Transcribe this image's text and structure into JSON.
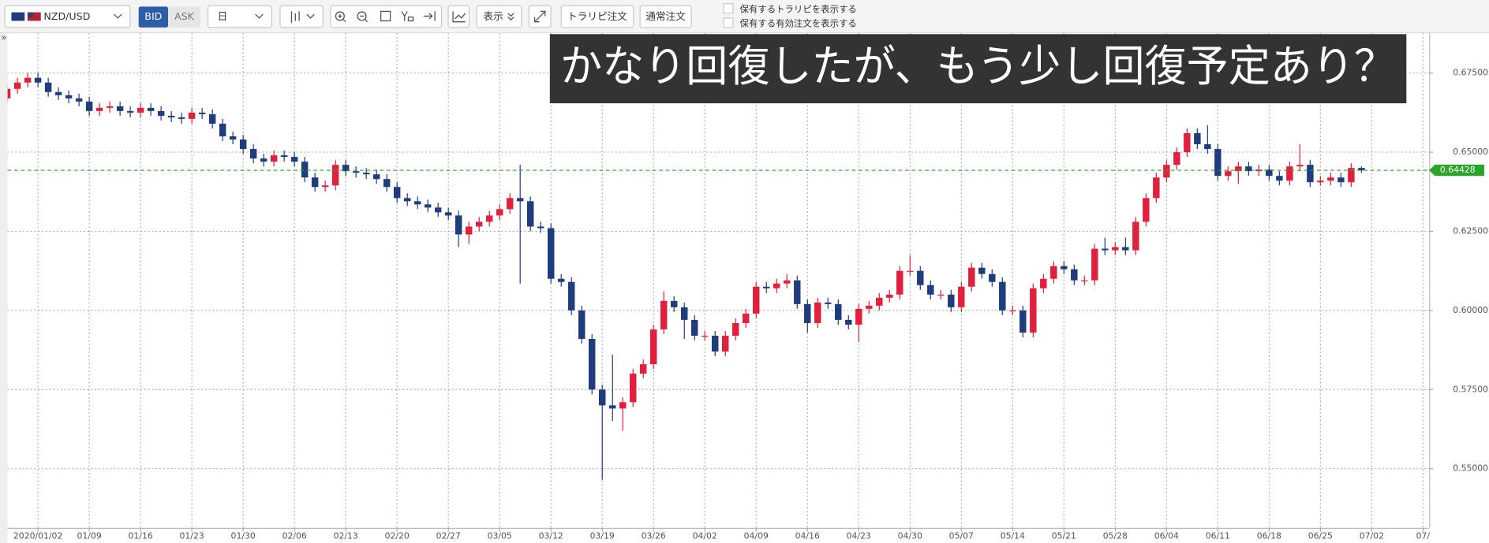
{
  "toolbar": {
    "symbol": "NZD/USD",
    "bid": "BID",
    "ask": "ASK",
    "timeframe": "日",
    "display": "表示",
    "trarepi_order": "トラリピ注文",
    "normal_order": "通常注文",
    "checkboxes": [
      "保有するトラリピを表示する",
      "保有する有効注文を表示する"
    ],
    "sidebar_toggle": "»"
  },
  "chart_data": {
    "type": "candlestick",
    "annotation": "かなり回復したが、もう少し回復予定あり？",
    "up_color": "#e0203c",
    "down_color": "#1f3c7c",
    "current_price_color": "#2aa52a",
    "grid": true,
    "xlim": [
      0.04,
      138.6
    ],
    "ylim": [
      0.5313,
      0.6876
    ],
    "yticks": [
      {
        "value": 0.55,
        "label": "0.55000"
      },
      {
        "value": 0.575,
        "label": "0.57500"
      },
      {
        "value": 0.6,
        "label": "0.60000"
      },
      {
        "value": 0.625,
        "label": "0.62500"
      },
      {
        "value": 0.65,
        "label": "0.65000"
      },
      {
        "value": 0.675,
        "label": "0.67500"
      }
    ],
    "xticks": [
      {
        "value": 3,
        "label": "2020/01/02"
      },
      {
        "value": 8,
        "label": "01/09"
      },
      {
        "value": 13,
        "label": "01/16"
      },
      {
        "value": 18,
        "label": "01/23"
      },
      {
        "value": 23,
        "label": "01/30"
      },
      {
        "value": 28,
        "label": "02/06"
      },
      {
        "value": 33,
        "label": "02/13"
      },
      {
        "value": 38,
        "label": "02/20"
      },
      {
        "value": 43,
        "label": "02/27"
      },
      {
        "value": 48,
        "label": "03/05"
      },
      {
        "value": 53,
        "label": "03/12"
      },
      {
        "value": 58,
        "label": "03/19"
      },
      {
        "value": 63,
        "label": "03/26"
      },
      {
        "value": 68,
        "label": "04/02"
      },
      {
        "value": 73,
        "label": "04/09"
      },
      {
        "value": 78,
        "label": "04/16"
      },
      {
        "value": 83,
        "label": "04/23"
      },
      {
        "value": 88,
        "label": "04/30"
      },
      {
        "value": 93,
        "label": "05/07"
      },
      {
        "value": 98,
        "label": "05/14"
      },
      {
        "value": 103,
        "label": "05/21"
      },
      {
        "value": 108,
        "label": "05/28"
      },
      {
        "value": 113,
        "label": "06/04"
      },
      {
        "value": 118,
        "label": "06/11"
      },
      {
        "value": 123,
        "label": "06/18"
      },
      {
        "value": 128,
        "label": "06/25"
      },
      {
        "value": 133,
        "label": "07/02"
      },
      {
        "value": 138,
        "label": "07/"
      }
    ],
    "current_price": 0.64428,
    "open": [
      0.667,
      0.67,
      0.672,
      0.6735,
      0.672,
      0.669,
      0.668,
      0.667,
      0.666,
      0.663,
      0.664,
      0.6645,
      0.663,
      0.6625,
      0.664,
      0.663,
      0.6615,
      0.661,
      0.6605,
      0.6625,
      0.662,
      0.659,
      0.655,
      0.654,
      0.651,
      0.648,
      0.647,
      0.649,
      0.6485,
      0.647,
      0.642,
      0.639,
      0.6395,
      0.646,
      0.644,
      0.6435,
      0.643,
      0.6415,
      0.639,
      0.6355,
      0.6345,
      0.6335,
      0.6325,
      0.631,
      0.63,
      0.624,
      0.6265,
      0.628,
      0.63,
      0.632,
      0.6355,
      0.6345,
      0.6265,
      0.626,
      0.61,
      0.609,
      0.6,
      0.591,
      0.575,
      0.57,
      0.569,
      0.571,
      0.58,
      0.583,
      0.594,
      0.603,
      0.601,
      0.597,
      0.592,
      0.592,
      0.587,
      0.592,
      0.596,
      0.599,
      0.6075,
      0.607,
      0.6085,
      0.6095,
      0.602,
      0.596,
      0.6025,
      0.602,
      0.597,
      0.5955,
      0.6005,
      0.6015,
      0.604,
      0.605,
      0.6125,
      0.6125,
      0.608,
      0.605,
      0.605,
      0.601,
      0.6075,
      0.6135,
      0.6115,
      0.609,
      0.6,
      0.6,
      0.593,
      0.607,
      0.61,
      0.614,
      0.613,
      0.6095,
      0.6095,
      0.6195,
      0.619,
      0.62,
      0.619,
      0.628,
      0.6355,
      0.642,
      0.646,
      0.65,
      0.656,
      0.6525,
      0.651,
      0.6425,
      0.644,
      0.6455,
      0.644,
      0.6445,
      0.6425,
      0.641,
      0.6455,
      0.646,
      0.6405,
      0.641,
      0.642,
      0.6405,
      0.645
    ],
    "high": [
      0.6715,
      0.6735,
      0.675,
      0.675,
      0.6735,
      0.6705,
      0.6695,
      0.6685,
      0.6675,
      0.6655,
      0.666,
      0.666,
      0.6645,
      0.6655,
      0.6655,
      0.6645,
      0.663,
      0.6625,
      0.664,
      0.664,
      0.6635,
      0.6605,
      0.6565,
      0.6555,
      0.6525,
      0.6495,
      0.6505,
      0.6505,
      0.65,
      0.6485,
      0.6435,
      0.641,
      0.6475,
      0.6475,
      0.6455,
      0.645,
      0.6445,
      0.643,
      0.6405,
      0.637,
      0.636,
      0.635,
      0.634,
      0.6325,
      0.6315,
      0.628,
      0.6295,
      0.6315,
      0.6335,
      0.637,
      0.646,
      0.636,
      0.628,
      0.6275,
      0.6115,
      0.6105,
      0.6015,
      0.5925,
      0.5765,
      0.586,
      0.5725,
      0.5815,
      0.5845,
      0.5955,
      0.606,
      0.6045,
      0.6025,
      0.5985,
      0.5935,
      0.5935,
      0.5935,
      0.5975,
      0.6005,
      0.609,
      0.609,
      0.61,
      0.6115,
      0.611,
      0.6035,
      0.604,
      0.604,
      0.6035,
      0.5985,
      0.602,
      0.603,
      0.6055,
      0.6065,
      0.614,
      0.6175,
      0.614,
      0.6095,
      0.6065,
      0.6065,
      0.609,
      0.615,
      0.615,
      0.613,
      0.6105,
      0.6015,
      0.6015,
      0.6085,
      0.6115,
      0.6155,
      0.6155,
      0.6145,
      0.611,
      0.621,
      0.623,
      0.6215,
      0.623,
      0.6295,
      0.637,
      0.6435,
      0.6475,
      0.6515,
      0.6575,
      0.6575,
      0.6585,
      0.6525,
      0.6455,
      0.647,
      0.647,
      0.646,
      0.646,
      0.644,
      0.647,
      0.6525,
      0.6475,
      0.6425,
      0.6435,
      0.6435,
      0.6465,
      0.6455
    ],
    "low": [
      0.6655,
      0.6685,
      0.6705,
      0.6705,
      0.6675,
      0.6665,
      0.6655,
      0.6645,
      0.6615,
      0.6615,
      0.6625,
      0.6615,
      0.661,
      0.661,
      0.6615,
      0.66,
      0.6595,
      0.659,
      0.659,
      0.6605,
      0.6575,
      0.6535,
      0.6525,
      0.6495,
      0.6465,
      0.6455,
      0.6455,
      0.647,
      0.6455,
      0.6405,
      0.6375,
      0.6375,
      0.638,
      0.6425,
      0.642,
      0.6415,
      0.64,
      0.6375,
      0.634,
      0.633,
      0.632,
      0.631,
      0.6295,
      0.6285,
      0.62,
      0.621,
      0.625,
      0.6265,
      0.6285,
      0.6305,
      0.6085,
      0.625,
      0.6245,
      0.6085,
      0.6075,
      0.5985,
      0.5895,
      0.5735,
      0.5465,
      0.565,
      0.562,
      0.5695,
      0.5785,
      0.5815,
      0.5925,
      0.5995,
      0.591,
      0.5905,
      0.5905,
      0.5855,
      0.5855,
      0.5905,
      0.5945,
      0.5975,
      0.6055,
      0.6055,
      0.607,
      0.6005,
      0.593,
      0.5945,
      0.6005,
      0.5955,
      0.594,
      0.59,
      0.599,
      0.6,
      0.6025,
      0.6035,
      0.611,
      0.6065,
      0.6035,
      0.6035,
      0.5995,
      0.5995,
      0.606,
      0.61,
      0.6075,
      0.5985,
      0.5985,
      0.5915,
      0.5915,
      0.6055,
      0.6085,
      0.6115,
      0.608,
      0.608,
      0.608,
      0.6175,
      0.6175,
      0.6175,
      0.6175,
      0.6265,
      0.634,
      0.6405,
      0.6445,
      0.6485,
      0.651,
      0.6495,
      0.641,
      0.641,
      0.64,
      0.6425,
      0.6425,
      0.641,
      0.6395,
      0.6395,
      0.644,
      0.639,
      0.6395,
      0.6395,
      0.639,
      0.639,
      0.6435
    ],
    "close": [
      0.67,
      0.672,
      0.6735,
      0.672,
      0.669,
      0.668,
      0.667,
      0.666,
      0.663,
      0.664,
      0.6645,
      0.663,
      0.6625,
      0.664,
      0.663,
      0.6615,
      0.661,
      0.6605,
      0.6625,
      0.662,
      0.659,
      0.655,
      0.654,
      0.651,
      0.648,
      0.647,
      0.649,
      0.6485,
      0.647,
      0.642,
      0.639,
      0.6395,
      0.646,
      0.644,
      0.6435,
      0.643,
      0.6415,
      0.639,
      0.6355,
      0.6345,
      0.6335,
      0.6325,
      0.631,
      0.63,
      0.624,
      0.6265,
      0.628,
      0.63,
      0.632,
      0.6355,
      0.6345,
      0.6265,
      0.626,
      0.61,
      0.609,
      0.6,
      0.591,
      0.575,
      0.57,
      0.569,
      0.571,
      0.58,
      0.583,
      0.594,
      0.603,
      0.601,
      0.597,
      0.592,
      0.592,
      0.587,
      0.592,
      0.596,
      0.599,
      0.6075,
      0.607,
      0.6085,
      0.6095,
      0.602,
      0.596,
      0.6025,
      0.602,
      0.597,
      0.5955,
      0.6005,
      0.6015,
      0.604,
      0.605,
      0.6125,
      0.6125,
      0.608,
      0.605,
      0.605,
      0.601,
      0.6075,
      0.6135,
      0.6115,
      0.609,
      0.6,
      0.6,
      0.593,
      0.607,
      0.61,
      0.614,
      0.613,
      0.6095,
      0.6095,
      0.6195,
      0.619,
      0.62,
      0.619,
      0.628,
      0.6355,
      0.642,
      0.646,
      0.65,
      0.656,
      0.6525,
      0.651,
      0.6425,
      0.644,
      0.6455,
      0.644,
      0.6445,
      0.6425,
      0.641,
      0.6455,
      0.646,
      0.6405,
      0.641,
      0.642,
      0.6405,
      0.645,
      0.6443
    ]
  }
}
